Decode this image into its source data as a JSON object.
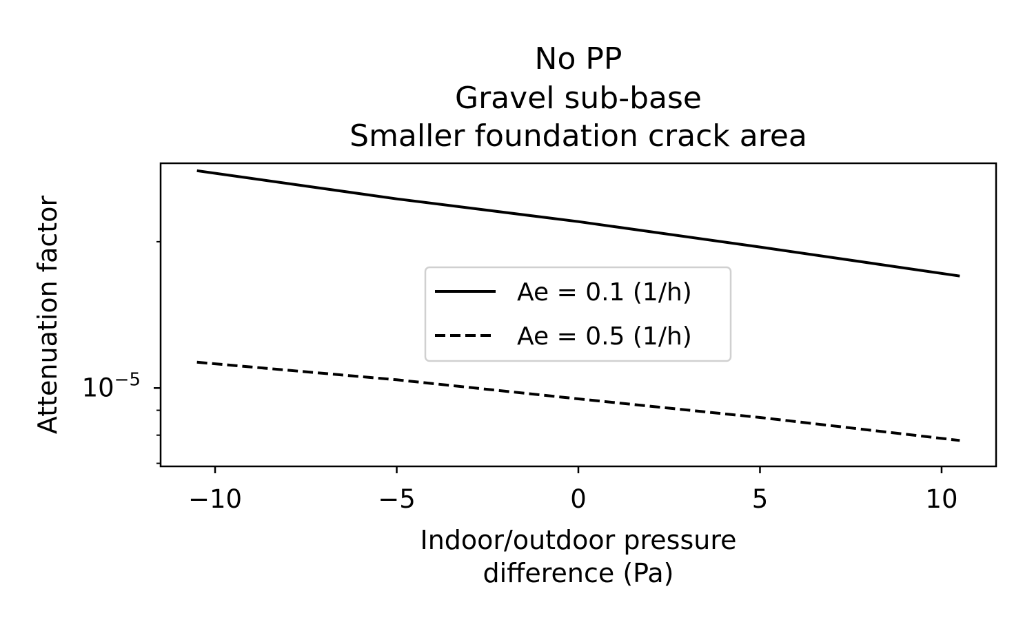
{
  "chart_data": {
    "type": "line",
    "title_lines": [
      "No PP",
      "Gravel sub-base",
      "Smaller foundation crack area"
    ],
    "xlabel_lines": [
      "Indoor/outdoor pressure",
      "difference (Pa)"
    ],
    "ylabel": "Attenuation factor",
    "xlim": [
      -11.5,
      11.5
    ],
    "ylim": [
      6.9e-06,
      2.9e-05
    ],
    "yscale": "log",
    "x_ticks": [
      {
        "value": -10,
        "label": "−10"
      },
      {
        "value": -5,
        "label": "−5"
      },
      {
        "value": 0,
        "label": "0"
      },
      {
        "value": 5,
        "label": "5"
      },
      {
        "value": 10,
        "label": "10"
      }
    ],
    "y_major_ticks": [
      {
        "value": 1e-05,
        "base": "10",
        "exponent": "−5"
      }
    ],
    "y_minor_ticks": [
      7e-06,
      8e-06,
      9e-06,
      2e-05
    ],
    "legend_position": "center",
    "grid": false,
    "series": [
      {
        "name": "Ae = 0.1 (1/h)",
        "style": "solid",
        "color": "#000000",
        "x": [
          -10.5,
          -5,
          0,
          5,
          10.5
        ],
        "y": [
          2.8e-05,
          2.45e-05,
          2.2e-05,
          1.95e-05,
          1.7e-05
        ]
      },
      {
        "name": "Ae = 0.5 (1/h)",
        "style": "dashed",
        "color": "#000000",
        "x": [
          -10.5,
          -5,
          0,
          5,
          10.5
        ],
        "y": [
          1.13e-05,
          1.04e-05,
          9.5e-06,
          8.7e-06,
          7.8e-06
        ]
      }
    ]
  }
}
